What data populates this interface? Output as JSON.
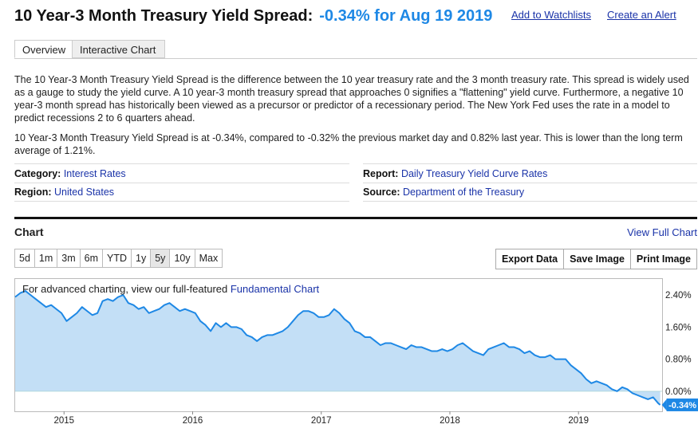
{
  "header": {
    "title": "10 Year-3 Month Treasury Yield Spread:",
    "value": "-0.34% for Aug 19 2019",
    "watchlist_link": "Add to Watchlists",
    "alert_link": "Create an Alert"
  },
  "tabs": [
    {
      "label": "Overview",
      "active": true
    },
    {
      "label": "Interactive Chart",
      "active": false
    }
  ],
  "description": {
    "para1": "The 10 Year-3 Month Treasury Yield Spread is the difference between the 10 year treasury rate and the 3 month treasury rate. This spread is widely used as a gauge to study the yield curve. A 10 year-3 month treasury spread that approaches 0 signifies a \"flattening\" yield curve. Furthermore, a negative 10 year-3 month spread has historically been viewed as a precursor or predictor of a recessionary period. The New York Fed uses the rate in a model to predict recessions 2 to 6 quarters ahead.",
    "para2": "10 Year-3 Month Treasury Yield Spread is at -0.34%, compared to -0.32% the previous market day and 0.82% last year. This is lower than the long term average of 1.21%."
  },
  "meta": {
    "category_label": "Category:",
    "category_value": "Interest Rates",
    "region_label": "Region:",
    "region_value": "United States",
    "report_label": "Report:",
    "report_value": "Daily Treasury Yield Curve Rates",
    "source_label": "Source:",
    "source_value": "Department of the Treasury"
  },
  "chart_section": {
    "title": "Chart",
    "view_full": "View Full Chart",
    "ranges": [
      "5d",
      "1m",
      "3m",
      "6m",
      "YTD",
      "1y",
      "5y",
      "10y",
      "Max"
    ],
    "selected_range": "5y",
    "tools": [
      "Export Data",
      "Save Image",
      "Print Image"
    ],
    "note_prefix": "For advanced charting, view our full-featured ",
    "note_link": "Fundamental Chart"
  },
  "colors": {
    "line": "#1e88e5",
    "fill": "#bcdcf5",
    "accent_value": "#1e88e5",
    "link": "#1a33a8"
  },
  "chart_data": {
    "type": "area",
    "title": "",
    "xlabel": "",
    "ylabel": "",
    "ylim": [
      -0.5,
      2.8
    ],
    "xlim": [
      2014.62,
      2019.65
    ],
    "y_ticks": [
      0,
      0.8,
      1.6,
      2.4
    ],
    "y_tick_labels": [
      "0.00%",
      "0.80%",
      "1.60%",
      "2.40%"
    ],
    "x_ticks": [
      2015,
      2016,
      2017,
      2018,
      2019
    ],
    "x_tick_labels": [
      "2015",
      "2016",
      "2017",
      "2018",
      "2019"
    ],
    "last_value_label": "-0.34%",
    "grid": false,
    "series": [
      {
        "x": [
          2014.62,
          2014.66,
          2014.7,
          2014.74,
          2014.78,
          2014.82,
          2014.86,
          2014.9,
          2014.94,
          2014.98,
          2015.02,
          2015.06,
          2015.1,
          2015.14,
          2015.18,
          2015.22,
          2015.26,
          2015.3,
          2015.34,
          2015.38,
          2015.42,
          2015.46,
          2015.5,
          2015.54,
          2015.58,
          2015.62,
          2015.66,
          2015.7,
          2015.74,
          2015.78,
          2015.82,
          2015.86,
          2015.9,
          2015.94,
          2015.98,
          2016.02,
          2016.06,
          2016.1,
          2016.14,
          2016.18,
          2016.22,
          2016.26,
          2016.3,
          2016.34,
          2016.38,
          2016.42,
          2016.46,
          2016.5,
          2016.54,
          2016.58,
          2016.62,
          2016.66,
          2016.7,
          2016.74,
          2016.78,
          2016.82,
          2016.86,
          2016.9,
          2016.94,
          2016.98,
          2017.02,
          2017.06,
          2017.1,
          2017.14,
          2017.18,
          2017.22,
          2017.26,
          2017.3,
          2017.34,
          2017.38,
          2017.42,
          2017.46,
          2017.5,
          2017.54,
          2017.58,
          2017.62,
          2017.66,
          2017.7,
          2017.74,
          2017.78,
          2017.82,
          2017.86,
          2017.9,
          2017.94,
          2017.98,
          2018.02,
          2018.06,
          2018.1,
          2018.14,
          2018.18,
          2018.22,
          2018.26,
          2018.3,
          2018.34,
          2018.38,
          2018.42,
          2018.46,
          2018.5,
          2018.54,
          2018.58,
          2018.62,
          2018.66,
          2018.7,
          2018.74,
          2018.78,
          2018.82,
          2018.86,
          2018.9,
          2018.94,
          2018.98,
          2019.02,
          2019.06,
          2019.1,
          2019.14,
          2019.18,
          2019.22,
          2019.26,
          2019.3,
          2019.34,
          2019.38,
          2019.42,
          2019.46,
          2019.5,
          2019.54,
          2019.58,
          2019.62,
          2019.635
        ],
        "y": [
          2.35,
          2.45,
          2.5,
          2.4,
          2.3,
          2.2,
          2.1,
          2.15,
          2.05,
          1.95,
          1.75,
          1.85,
          1.95,
          2.1,
          2.0,
          1.9,
          1.95,
          2.25,
          2.3,
          2.25,
          2.35,
          2.4,
          2.2,
          2.15,
          2.05,
          2.1,
          1.95,
          2.0,
          2.05,
          2.15,
          2.2,
          2.1,
          2.0,
          2.05,
          2.0,
          1.95,
          1.75,
          1.65,
          1.5,
          1.7,
          1.6,
          1.7,
          1.6,
          1.6,
          1.55,
          1.4,
          1.35,
          1.25,
          1.35,
          1.4,
          1.4,
          1.45,
          1.5,
          1.6,
          1.75,
          1.9,
          2.0,
          2.0,
          1.95,
          1.85,
          1.85,
          1.9,
          2.05,
          1.95,
          1.8,
          1.7,
          1.5,
          1.45,
          1.35,
          1.35,
          1.25,
          1.15,
          1.2,
          1.2,
          1.15,
          1.1,
          1.05,
          1.15,
          1.1,
          1.1,
          1.05,
          1.0,
          1.0,
          1.05,
          1.0,
          1.05,
          1.15,
          1.2,
          1.1,
          1.0,
          0.95,
          0.9,
          1.05,
          1.1,
          1.15,
          1.2,
          1.1,
          1.1,
          1.05,
          0.95,
          1.0,
          0.9,
          0.85,
          0.85,
          0.9,
          0.8,
          0.8,
          0.8,
          0.65,
          0.55,
          0.45,
          0.3,
          0.2,
          0.25,
          0.2,
          0.15,
          0.05,
          0.0,
          0.1,
          0.05,
          -0.05,
          -0.1,
          -0.15,
          -0.2,
          -0.15,
          -0.3,
          -0.34
        ]
      }
    ]
  }
}
